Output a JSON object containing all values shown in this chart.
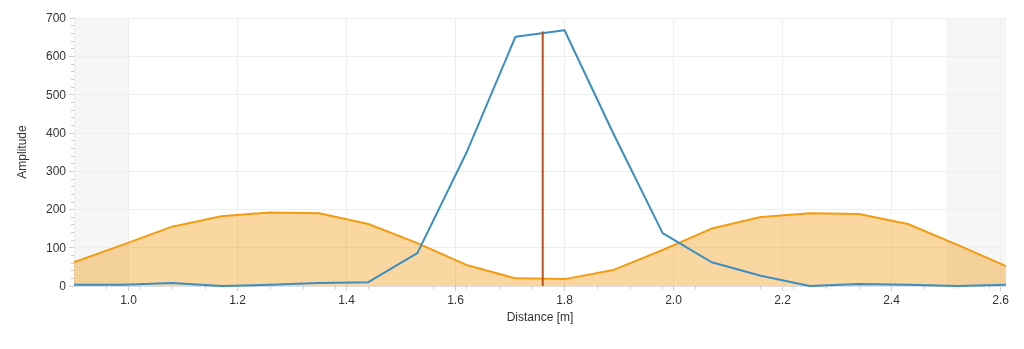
{
  "chart_data": {
    "type": "line",
    "xlabel": "Distance [m]",
    "ylabel": "Amplitude",
    "xlim": [
      0.9,
      2.61
    ],
    "xticks": [
      {
        "value": 1,
        "label": "1.0"
      },
      1.2,
      1.4,
      1.6,
      1.8,
      {
        "value": 2,
        "label": "2.0"
      },
      2.2,
      2.4,
      2.6
    ],
    "ylim": [
      0,
      700
    ],
    "yticks": [
      0,
      100,
      200,
      300,
      400,
      500,
      600,
      700
    ],
    "x": [
      0.9,
      0.99,
      1.08,
      1.17,
      1.26,
      1.35,
      1.44,
      1.53,
      1.62,
      1.71,
      1.8,
      1.89,
      1.98,
      2.07,
      2.16,
      2.25,
      2.34,
      2.43,
      2.52,
      2.61
    ],
    "series": [
      {
        "type": "area",
        "color": "#f39c12",
        "values": [
          62,
          108,
          155,
          182,
          192,
          190,
          162,
          112,
          55,
          20,
          18,
          42,
          94,
          150,
          180,
          190,
          188,
          162,
          108,
          52
        ]
      },
      {
        "type": "line",
        "color": "#3a8fc0",
        "values": [
          3,
          3,
          8,
          0,
          3,
          8,
          10,
          86,
          348,
          651,
          668,
          397,
          138,
          62,
          27,
          0,
          5,
          3,
          0,
          3
        ]
      },
      {
        "type": "line",
        "color": "#c0501a",
        "x": [
          1.76,
          1.76
        ],
        "values": [
          0,
          665
        ]
      }
    ],
    "bands": [
      {
        "axis": "x",
        "from": 0.9,
        "to": 1.0,
        "color": "#f0f0f0"
      },
      {
        "axis": "x",
        "from": 2.5,
        "to": 2.61,
        "color": "#f0f0f0"
      }
    ],
    "grid": true,
    "marker": "none",
    "line_style": "solid"
  }
}
